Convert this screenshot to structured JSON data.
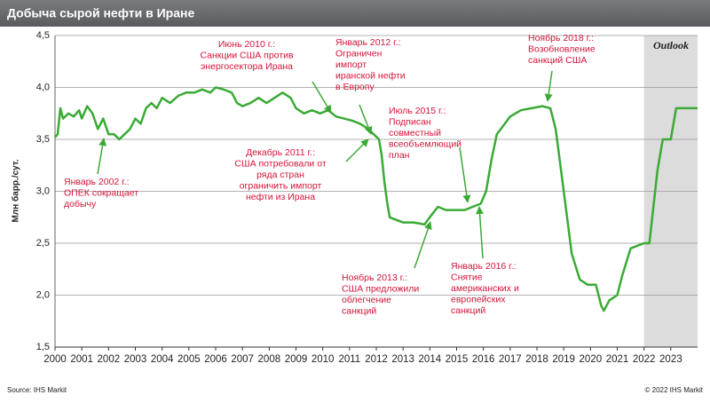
{
  "chart_data": {
    "type": "line",
    "title": "Добыча сырой нефти  в Иране",
    "y_label": "Млн барр./сут.",
    "source": "Source: IHS Markit",
    "copyright": "© 2022 IHS Markit",
    "shaded_label": "Outlook",
    "shaded_from": 2022,
    "xlim": [
      2000,
      2024
    ],
    "xticks": [
      2000,
      2001,
      2002,
      2003,
      2004,
      2005,
      2006,
      2007,
      2008,
      2009,
      2010,
      2011,
      2012,
      2013,
      2014,
      2015,
      2016,
      2017,
      2018,
      2019,
      2020,
      2021,
      2022,
      2023
    ],
    "ylim": [
      1.5,
      4.5
    ],
    "yticks": [
      {
        "value": 1.5,
        "label": "1,5"
      },
      {
        "value": 2.0,
        "label": "2,0"
      },
      {
        "value": 2.5,
        "label": "2,5"
      },
      {
        "value": 3.0,
        "label": "3,0"
      },
      {
        "value": 3.5,
        "label": "3,5"
      },
      {
        "value": 4.0,
        "label": "4,0"
      },
      {
        "value": 4.5,
        "label": "4,5"
      }
    ],
    "grid": true,
    "series": [
      {
        "name": "Добыча",
        "color": "#3aaa35",
        "x": [
          2000.0,
          2000.1,
          2000.2,
          2000.3,
          2000.5,
          2000.7,
          2000.9,
          2001.0,
          2001.2,
          2001.4,
          2001.6,
          2001.8,
          2002.0,
          2002.2,
          2002.4,
          2002.6,
          2002.8,
          2003.0,
          2003.2,
          2003.4,
          2003.6,
          2003.8,
          2004.0,
          2004.3,
          2004.6,
          2004.9,
          2005.2,
          2005.5,
          2005.8,
          2006.0,
          2006.3,
          2006.6,
          2006.8,
          2007.0,
          2007.3,
          2007.6,
          2007.9,
          2008.2,
          2008.5,
          2008.8,
          2009.0,
          2009.3,
          2009.6,
          2009.9,
          2010.2,
          2010.5,
          2010.8,
          2011.1,
          2011.4,
          2011.7,
          2011.9,
          2012.1,
          2012.2,
          2012.3,
          2012.4,
          2012.5,
          2012.8,
          2013.0,
          2013.4,
          2013.8,
          2014.0,
          2014.3,
          2014.6,
          2015.0,
          2015.3,
          2015.6,
          2015.9,
          2016.1,
          2016.3,
          2016.5,
          2016.8,
          2017.0,
          2017.4,
          2017.8,
          2018.2,
          2018.5,
          2018.7,
          2018.9,
          2019.1,
          2019.3,
          2019.6,
          2019.9,
          2020.2,
          2020.4,
          2020.5,
          2020.7,
          2021.0,
          2021.2,
          2021.5,
          2021.8,
          2022.0,
          2022.2,
          2022.5,
          2022.7,
          2023.0,
          2023.2,
          2023.5,
          2024.0
        ],
        "values": [
          3.52,
          3.55,
          3.8,
          3.7,
          3.75,
          3.72,
          3.78,
          3.7,
          3.82,
          3.75,
          3.6,
          3.7,
          3.55,
          3.55,
          3.5,
          3.55,
          3.6,
          3.7,
          3.65,
          3.8,
          3.85,
          3.8,
          3.9,
          3.85,
          3.92,
          3.95,
          3.95,
          3.98,
          3.95,
          4.0,
          3.98,
          3.95,
          3.85,
          3.82,
          3.85,
          3.9,
          3.85,
          3.9,
          3.95,
          3.9,
          3.8,
          3.75,
          3.78,
          3.75,
          3.78,
          3.72,
          3.7,
          3.68,
          3.65,
          3.6,
          3.55,
          3.5,
          3.35,
          3.1,
          2.9,
          2.75,
          2.72,
          2.7,
          2.7,
          2.68,
          2.75,
          2.85,
          2.82,
          2.82,
          2.82,
          2.85,
          2.88,
          3.0,
          3.3,
          3.55,
          3.65,
          3.72,
          3.78,
          3.8,
          3.82,
          3.8,
          3.6,
          3.2,
          2.8,
          2.4,
          2.15,
          2.1,
          2.1,
          1.9,
          1.85,
          1.95,
          2.0,
          2.2,
          2.45,
          2.48,
          2.5,
          2.5,
          3.2,
          3.5,
          3.5,
          3.8,
          3.8,
          3.8
        ]
      }
    ],
    "annotations": [
      [
        "Январь 2002 г.:",
        "ОПЕК сокращает",
        "добычу"
      ],
      [
        "Июнь 2010 г.:",
        "Санкции США против",
        "энергосектора  Ирана"
      ],
      [
        "Январь 2012 г.:",
        "Ограничен",
        "импорт",
        "иранской нефти",
        "в Европу"
      ],
      [
        "Декабрь 2011 г.:",
        "США потребовали  от",
        "ряда стран",
        "ограничить  импорт",
        "нефти  из Ирана"
      ],
      [
        "Июль 2015 г.:",
        "Подписан",
        "совместный",
        "всеобъемлющий",
        "план"
      ],
      [
        "Ноябрь 2013 г.:",
        "США предложили",
        "облегчение",
        "санкций"
      ],
      [
        "Январь 2016 г.:",
        "Снятие",
        "американских и",
        "европейских",
        "санкций"
      ],
      [
        "Ноябрь 2018 г.:",
        "Возобновление",
        "санкций США"
      ]
    ]
  }
}
